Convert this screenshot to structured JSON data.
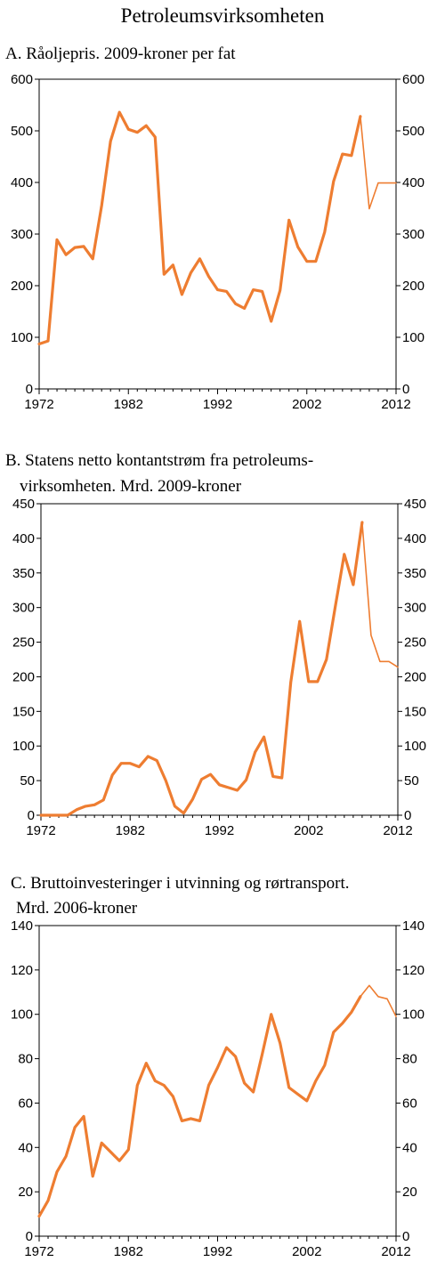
{
  "title": "Petroleumsvirksomheten",
  "colors": {
    "line": "#ee7d31",
    "axis": "#000000"
  },
  "chart_data": [
    {
      "type": "line",
      "title_lines": [
        "A. Råoljepris. 2009-kroner per fat"
      ],
      "ylim": [
        0,
        600
      ],
      "yticks": [
        "0",
        "100",
        "200",
        "300",
        "400",
        "500",
        "600"
      ],
      "y2ticks": [
        "0",
        "100",
        "200",
        "300",
        "400",
        "500",
        "600"
      ],
      "xlim": [
        1972,
        2012
      ],
      "xticks": [
        "1972",
        "1982",
        "1992",
        "2002",
        "2012"
      ],
      "series": [
        {
          "style": "actual",
          "x": [
            1972,
            1973,
            1974,
            1975,
            1976,
            1977,
            1978,
            1979,
            1980,
            1981,
            1982,
            1983,
            1984,
            1985,
            1986,
            1987,
            1988,
            1989,
            1990,
            1991,
            1992,
            1993,
            1994,
            1995,
            1996,
            1997,
            1998,
            1999,
            2000,
            2001,
            2002,
            2003,
            2004,
            2005,
            2006,
            2007,
            2008
          ],
          "values": [
            87,
            93,
            289,
            260,
            274,
            276,
            252,
            355,
            480,
            536,
            503,
            497,
            510,
            488,
            222,
            240,
            183,
            225,
            252,
            218,
            192,
            189,
            165,
            156,
            192,
            189,
            131,
            191,
            327,
            275,
            247,
            247,
            304,
            402,
            455,
            452,
            528
          ]
        },
        {
          "style": "projection",
          "x": [
            2009,
            2010,
            2011,
            2012
          ],
          "values": [
            349,
            399,
            399,
            399
          ]
        }
      ]
    },
    {
      "type": "line",
      "title_lines": [
        "B. Statens netto kontantstrøm fra petroleums-",
        "virksomheten. Mrd. 2009-kroner"
      ],
      "ylim": [
        0,
        450
      ],
      "yticks": [
        "0",
        "50",
        "100",
        "150",
        "200",
        "250",
        "300",
        "350",
        "400",
        "450"
      ],
      "y2ticks": [
        "0",
        "50",
        "100",
        "150",
        "200",
        "250",
        "300",
        "350",
        "400",
        "450"
      ],
      "xlim": [
        1972,
        2012
      ],
      "xticks": [
        "1972",
        "1982",
        "1992",
        "2002",
        "2012"
      ],
      "series": [
        {
          "style": "actual",
          "x": [
            1972,
            1973,
            1974,
            1975,
            1976,
            1977,
            1978,
            1979,
            1980,
            1981,
            1982,
            1983,
            1984,
            1985,
            1986,
            1987,
            1988,
            1989,
            1990,
            1991,
            1992,
            1993,
            1994,
            1995,
            1996,
            1997,
            1998,
            1999,
            2000,
            2001,
            2002,
            2003,
            2004,
            2005,
            2006,
            2007,
            2008
          ],
          "values": [
            0,
            0,
            0,
            0,
            8,
            13,
            15,
            22,
            58,
            75,
            75,
            70,
            85,
            79,
            50,
            13,
            3,
            23,
            52,
            59,
            44,
            40,
            36,
            51,
            91,
            113,
            56,
            54,
            192,
            280,
            193,
            193,
            225,
            302,
            377,
            333,
            423
          ]
        },
        {
          "style": "projection",
          "x": [
            2009,
            2010,
            2011,
            2012
          ],
          "values": [
            260,
            222,
            222,
            214
          ]
        }
      ]
    },
    {
      "type": "line",
      "title_lines": [
        "C. Bruttoinvesteringer i utvinning og rørtransport.",
        "Mrd. 2006-kroner"
      ],
      "ylim": [
        0,
        140
      ],
      "yticks": [
        "0",
        "20",
        "40",
        "60",
        "80",
        "100",
        "120",
        "140"
      ],
      "y2ticks": [
        "0",
        "20",
        "40",
        "60",
        "80",
        "100",
        "120",
        "140"
      ],
      "xlim": [
        1972,
        2012
      ],
      "xticks": [
        "1972",
        "1982",
        "1992",
        "2002",
        "2012"
      ],
      "series": [
        {
          "style": "actual",
          "x": [
            1972,
            1973,
            1974,
            1975,
            1976,
            1977,
            1978,
            1979,
            1980,
            1981,
            1982,
            1983,
            1984,
            1985,
            1986,
            1987,
            1988,
            1989,
            1990,
            1991,
            1992,
            1993,
            1994,
            1995,
            1996,
            1997,
            1998,
            1999,
            2000,
            2001,
            2002,
            2003,
            2004,
            2005,
            2006,
            2007,
            2008
          ],
          "values": [
            9,
            16,
            29,
            36,
            49,
            54,
            27,
            42,
            38,
            34,
            39,
            68,
            78,
            70,
            68,
            63,
            52,
            53,
            52,
            68,
            76,
            85,
            81,
            69,
            65,
            82,
            100,
            87,
            67,
            64,
            61,
            70,
            77,
            92,
            96,
            101,
            108
          ]
        },
        {
          "style": "projection",
          "x": [
            2009,
            2010,
            2011,
            2012
          ],
          "values": [
            113,
            108,
            107,
            99
          ]
        }
      ]
    }
  ]
}
